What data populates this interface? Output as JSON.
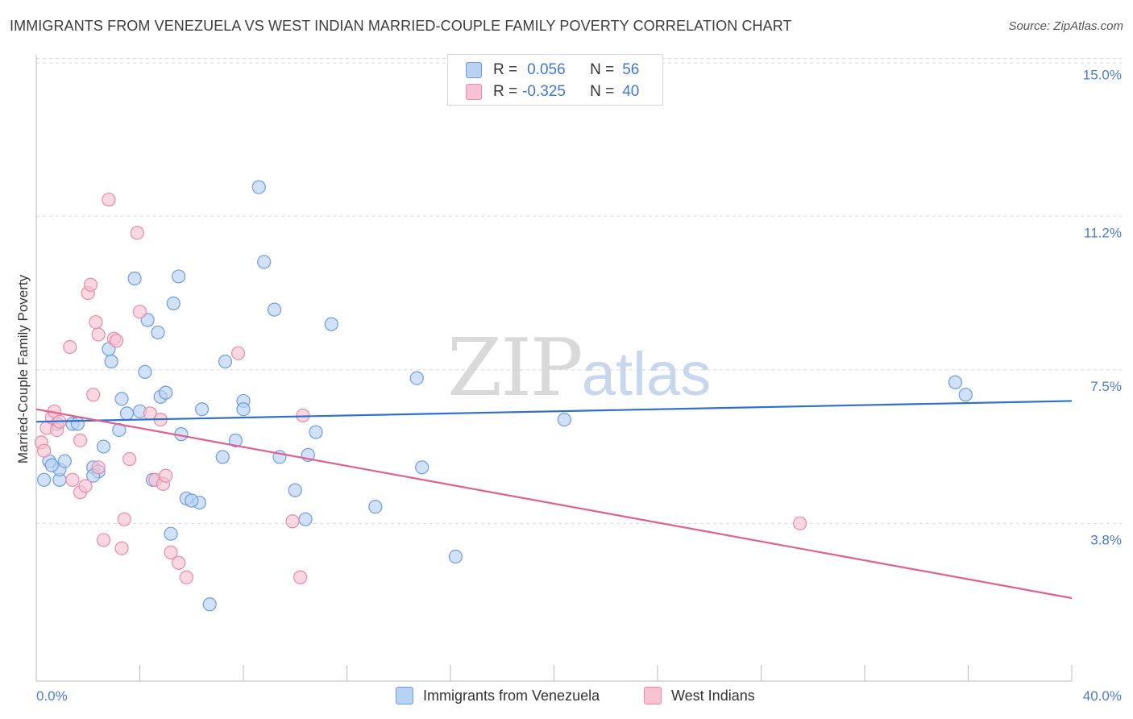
{
  "title": "IMMIGRANTS FROM VENEZUELA VS WEST INDIAN MARRIED-COUPLE FAMILY POVERTY CORRELATION CHART",
  "source": "Source: ZipAtlas.com",
  "watermark": {
    "zip": "ZIP",
    "atlas": "atlas"
  },
  "legend": {
    "rows": [
      {
        "r_label": "R =",
        "r_value": "0.056",
        "n_label": "N =",
        "n_value": "56"
      },
      {
        "r_label": "R =",
        "r_value": "-0.325",
        "n_label": "N =",
        "n_value": "40"
      }
    ]
  },
  "colors": {
    "blue_fill": "#b9d1f2",
    "blue_stroke": "#6b9de0",
    "blue_line": "#2f6fcf",
    "pink_fill": "#f7c3d3",
    "pink_stroke": "#e98aa8",
    "pink_line": "#e0608e",
    "grid": "#d8d8d8",
    "tick_text": "#4a7bd0"
  },
  "chart_data": {
    "type": "scatter",
    "title": "IMMIGRANTS FROM VENEZUELA VS WEST INDIAN MARRIED-COUPLE FAMILY POVERTY CORRELATION CHART",
    "xlabel": "",
    "ylabel": "Married-Couple Family Poverty",
    "xlim": [
      0,
      40
    ],
    "ylim": [
      0,
      15.4
    ],
    "x_tick_labels": [
      "0.0%",
      "40.0%"
    ],
    "y_ticks": [
      3.8,
      7.5,
      11.2,
      15.0
    ],
    "y_tick_labels": [
      "3.8%",
      "7.5%",
      "11.2%",
      "15.0%"
    ],
    "grid": true,
    "legend_placement": "top-center",
    "series": [
      {
        "name": "Immigrants from Venezuela",
        "color": "#6b9de0",
        "r": 0.056,
        "n": 56,
        "trend": {
          "x": [
            0,
            40
          ],
          "y": [
            6.25,
            6.75
          ]
        },
        "points": [
          [
            0.3,
            4.85
          ],
          [
            0.5,
            5.3
          ],
          [
            0.8,
            6.2
          ],
          [
            0.9,
            4.85
          ],
          [
            0.9,
            5.1
          ],
          [
            1.1,
            5.3
          ],
          [
            1.4,
            6.2
          ],
          [
            1.6,
            6.2
          ],
          [
            2.2,
            5.15
          ],
          [
            2.4,
            5.05
          ],
          [
            2.6,
            5.65
          ],
          [
            2.8,
            8.0
          ],
          [
            2.9,
            7.7
          ],
          [
            3.2,
            6.05
          ],
          [
            3.3,
            6.8
          ],
          [
            3.5,
            6.45
          ],
          [
            3.8,
            9.7
          ],
          [
            4.0,
            6.5
          ],
          [
            4.2,
            7.45
          ],
          [
            4.3,
            8.7
          ],
          [
            4.5,
            4.85
          ],
          [
            4.7,
            8.4
          ],
          [
            4.8,
            6.85
          ],
          [
            5.0,
            6.95
          ],
          [
            5.2,
            3.55
          ],
          [
            5.3,
            9.1
          ],
          [
            5.5,
            9.75
          ],
          [
            5.6,
            5.95
          ],
          [
            5.8,
            4.4
          ],
          [
            6.3,
            4.3
          ],
          [
            6.4,
            6.55
          ],
          [
            6.7,
            1.85
          ],
          [
            7.2,
            5.4
          ],
          [
            7.3,
            7.7
          ],
          [
            7.7,
            5.8
          ],
          [
            8.0,
            6.75
          ],
          [
            8.0,
            6.55
          ],
          [
            8.6,
            11.9
          ],
          [
            8.8,
            10.1
          ],
          [
            9.2,
            8.95
          ],
          [
            9.4,
            5.4
          ],
          [
            10.0,
            4.6
          ],
          [
            10.4,
            3.9
          ],
          [
            10.5,
            5.45
          ],
          [
            10.8,
            6.0
          ],
          [
            11.4,
            8.6
          ],
          [
            13.1,
            4.2
          ],
          [
            14.7,
            7.3
          ],
          [
            14.9,
            5.15
          ],
          [
            16.2,
            3.0
          ],
          [
            20.4,
            6.3
          ],
          [
            35.5,
            7.2
          ],
          [
            35.9,
            6.9
          ],
          [
            0.6,
            5.2
          ],
          [
            2.2,
            4.95
          ],
          [
            6.0,
            4.35
          ]
        ]
      },
      {
        "name": "West Indians",
        "color": "#e98aa8",
        "r": -0.325,
        "n": 40,
        "trend": {
          "x": [
            0,
            40
          ],
          "y": [
            6.55,
            2.0
          ]
        },
        "points": [
          [
            0.2,
            5.75
          ],
          [
            0.3,
            5.55
          ],
          [
            0.4,
            6.1
          ],
          [
            0.6,
            6.35
          ],
          [
            0.7,
            6.5
          ],
          [
            0.8,
            6.05
          ],
          [
            0.9,
            6.25
          ],
          [
            1.3,
            8.05
          ],
          [
            1.4,
            4.85
          ],
          [
            1.7,
            5.8
          ],
          [
            1.7,
            4.55
          ],
          [
            1.9,
            4.7
          ],
          [
            2.0,
            9.35
          ],
          [
            2.1,
            9.55
          ],
          [
            2.3,
            8.65
          ],
          [
            2.4,
            8.35
          ],
          [
            2.2,
            6.9
          ],
          [
            2.4,
            5.15
          ],
          [
            2.6,
            3.4
          ],
          [
            2.8,
            11.6
          ],
          [
            3.0,
            8.25
          ],
          [
            3.1,
            8.2
          ],
          [
            3.3,
            3.2
          ],
          [
            3.4,
            3.9
          ],
          [
            3.6,
            5.35
          ],
          [
            3.9,
            10.8
          ],
          [
            4.0,
            8.9
          ],
          [
            4.4,
            6.45
          ],
          [
            4.6,
            4.85
          ],
          [
            4.8,
            6.3
          ],
          [
            4.9,
            4.75
          ],
          [
            5.0,
            4.95
          ],
          [
            5.2,
            3.1
          ],
          [
            5.5,
            2.85
          ],
          [
            5.8,
            2.5
          ],
          [
            7.8,
            7.9
          ],
          [
            9.9,
            3.85
          ],
          [
            10.2,
            2.5
          ],
          [
            10.3,
            6.4
          ],
          [
            29.5,
            3.8
          ]
        ]
      }
    ]
  },
  "y_axis_label": "Married-Couple Family Poverty",
  "x_axis": {
    "min_label": "0.0%",
    "max_label": "40.0%"
  },
  "bottom_legend": {
    "series1": "Immigrants from Venezuela",
    "series2": "West Indians"
  }
}
